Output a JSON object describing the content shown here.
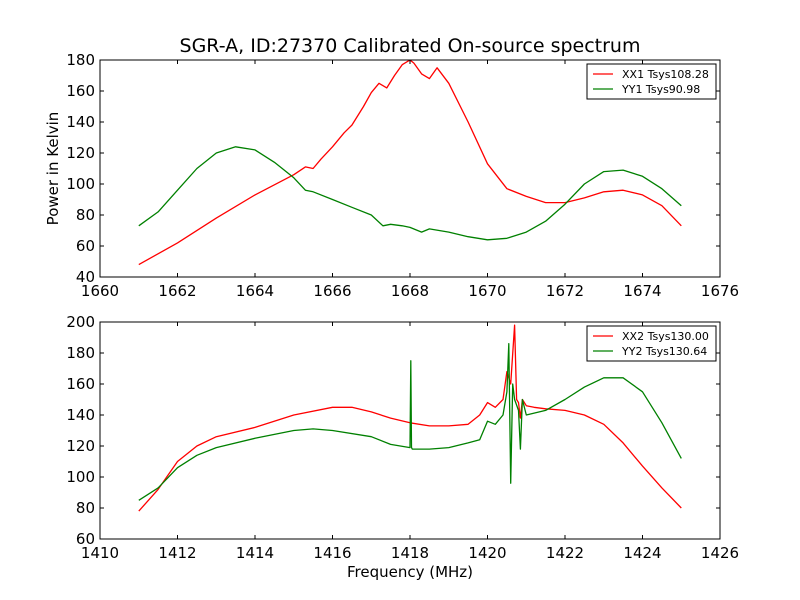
{
  "figure": {
    "title": "SGR-A, ID:27370 Calibrated On-source spectrum",
    "ylabel": "Power in Kelvin",
    "xlabel": "Frequency (MHz)"
  },
  "chart_data": [
    {
      "type": "line",
      "title": "SGR-A, ID:27370 Calibrated On-source spectrum",
      "xlabel": "",
      "ylabel": "Power in Kelvin",
      "xlim": [
        1660,
        1676
      ],
      "ylim": [
        40,
        180
      ],
      "xticks": [
        1660,
        1662,
        1664,
        1666,
        1668,
        1670,
        1672,
        1674,
        1676
      ],
      "yticks": [
        40,
        60,
        80,
        100,
        120,
        140,
        160,
        180
      ],
      "xtick_labels": [
        "1660",
        "1662",
        "1664",
        "1666",
        "1668",
        "1670",
        "1672",
        "1674",
        "1676"
      ],
      "ytick_labels": [
        "40",
        "60",
        "80",
        "100",
        "120",
        "140",
        "160",
        "180"
      ],
      "legend_position": "top-right",
      "grid": false,
      "series": [
        {
          "name": "XX1 Tsys108.28",
          "color": "#ff0000",
          "x": [
            1661,
            1662,
            1663,
            1664,
            1665,
            1665.3,
            1665.5,
            1665.7,
            1666,
            1666.3,
            1666.5,
            1666.8,
            1667,
            1667.2,
            1667.4,
            1667.6,
            1667.8,
            1668,
            1668.1,
            1668.3,
            1668.5,
            1668.7,
            1669,
            1669.5,
            1670,
            1670.5,
            1671,
            1671.5,
            1672,
            1672.5,
            1673,
            1673.5,
            1674,
            1674.5,
            1675
          ],
          "y": [
            48,
            62,
            78,
            93,
            106,
            111,
            110,
            116,
            124,
            133,
            138,
            150,
            159,
            165,
            162,
            170,
            177,
            180,
            178,
            171,
            168,
            175,
            165,
            140,
            113,
            97,
            92,
            88,
            88,
            91,
            95,
            96,
            93,
            86,
            73
          ]
        },
        {
          "name": "YY1 Tsys90.98",
          "color": "#008000",
          "x": [
            1661,
            1661.5,
            1662,
            1662.5,
            1663,
            1663.5,
            1664,
            1664.5,
            1665,
            1665.3,
            1665.5,
            1666,
            1666.5,
            1667,
            1667.3,
            1667.5,
            1667.8,
            1668,
            1668.3,
            1668.5,
            1669,
            1669.5,
            1670,
            1670.5,
            1671,
            1671.5,
            1672,
            1672.5,
            1673,
            1673.5,
            1674,
            1674.5,
            1675
          ],
          "y": [
            73,
            82,
            96,
            110,
            120,
            124,
            122,
            114,
            104,
            96,
            95,
            90,
            85,
            80,
            73,
            74,
            73,
            72,
            69,
            71,
            69,
            66,
            64,
            65,
            69,
            76,
            87,
            100,
            108,
            109,
            105,
            97,
            86
          ]
        }
      ]
    },
    {
      "type": "line",
      "title": "",
      "xlabel": "Frequency (MHz)",
      "ylabel": "",
      "xlim": [
        1410,
        1426
      ],
      "ylim": [
        60,
        200
      ],
      "xticks": [
        1410,
        1412,
        1414,
        1416,
        1418,
        1420,
        1422,
        1424,
        1426
      ],
      "yticks": [
        60,
        80,
        100,
        120,
        140,
        160,
        180,
        200
      ],
      "xtick_labels": [
        "1410",
        "1412",
        "1414",
        "1416",
        "1418",
        "1420",
        "1422",
        "1424",
        "1426"
      ],
      "ytick_labels": [
        "60",
        "80",
        "100",
        "120",
        "140",
        "160",
        "180",
        "200"
      ],
      "legend_position": "top-right",
      "grid": false,
      "series": [
        {
          "name": "XX2 Tsys130.00",
          "color": "#ff0000",
          "x": [
            1411,
            1411.5,
            1412,
            1412.5,
            1413,
            1414,
            1415,
            1416,
            1416.5,
            1417,
            1417.5,
            1418,
            1418.5,
            1419,
            1419.5,
            1419.8,
            1420,
            1420.2,
            1420.4,
            1420.5,
            1420.6,
            1420.7,
            1420.75,
            1420.8,
            1420.85,
            1420.9,
            1421,
            1421.2,
            1421.5,
            1422,
            1422.5,
            1423,
            1423.5,
            1424,
            1424.5,
            1425
          ],
          "y": [
            78,
            92,
            110,
            120,
            126,
            132,
            140,
            145,
            145,
            142,
            138,
            135,
            133,
            133,
            134,
            140,
            148,
            145,
            150,
            168,
            160,
            198,
            150,
            148,
            138,
            150,
            146,
            145,
            144,
            143,
            140,
            134,
            122,
            107,
            93,
            80
          ]
        },
        {
          "name": "YY2 Tsys130.64",
          "color": "#008000",
          "x": [
            1411,
            1411.5,
            1412,
            1412.5,
            1413,
            1414,
            1415,
            1415.5,
            1416,
            1417,
            1417.5,
            1418,
            1418.02,
            1418.04,
            1418.06,
            1418.5,
            1419,
            1419.5,
            1419.8,
            1420,
            1420.2,
            1420.4,
            1420.5,
            1420.55,
            1420.6,
            1420.65,
            1420.7,
            1420.8,
            1420.85,
            1420.9,
            1421,
            1421.5,
            1422,
            1422.5,
            1423,
            1423.5,
            1424,
            1424.5,
            1425
          ],
          "y": [
            85,
            93,
            106,
            114,
            119,
            125,
            130,
            131,
            130,
            126,
            121,
            119,
            175,
            119,
            118,
            118,
            119,
            122,
            124,
            136,
            134,
            140,
            155,
            186,
            96,
            160,
            150,
            143,
            118,
            150,
            140,
            143,
            150,
            158,
            164,
            164,
            155,
            135,
            112
          ]
        }
      ]
    }
  ]
}
